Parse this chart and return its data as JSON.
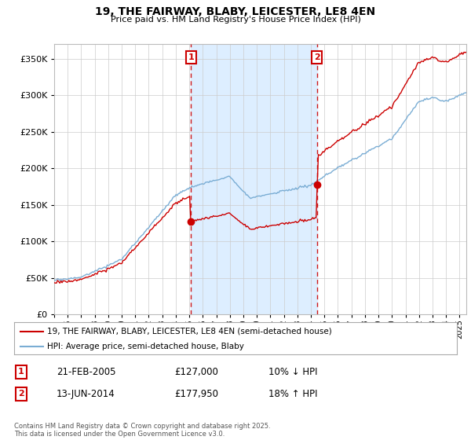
{
  "title": "19, THE FAIRWAY, BLABY, LEICESTER, LE8 4EN",
  "subtitle": "Price paid vs. HM Land Registry's House Price Index (HPI)",
  "ylim": [
    0,
    370000
  ],
  "yticks": [
    0,
    50000,
    100000,
    150000,
    200000,
    250000,
    300000,
    350000
  ],
  "xlim_start": 1995.0,
  "xlim_end": 2025.5,
  "hpi_color": "#7aadd4",
  "sale_color": "#cc0000",
  "shade_color": "#ddeeff",
  "marker1_date": 2005.13,
  "marker2_date": 2014.45,
  "marker1_price": 127000,
  "marker2_price": 177950,
  "legend_sale": "19, THE FAIRWAY, BLABY, LEICESTER, LE8 4EN (semi-detached house)",
  "legend_hpi": "HPI: Average price, semi-detached house, Blaby",
  "table_rows": [
    {
      "num": "1",
      "date": "21-FEB-2005",
      "price": "£127,000",
      "change": "10% ↓ HPI"
    },
    {
      "num": "2",
      "date": "13-JUN-2014",
      "price": "£177,950",
      "change": "18% ↑ HPI"
    }
  ],
  "footnote": "Contains HM Land Registry data © Crown copyright and database right 2025.\nThis data is licensed under the Open Government Licence v3.0.",
  "background_color": "#ffffff",
  "grid_color": "#cccccc"
}
